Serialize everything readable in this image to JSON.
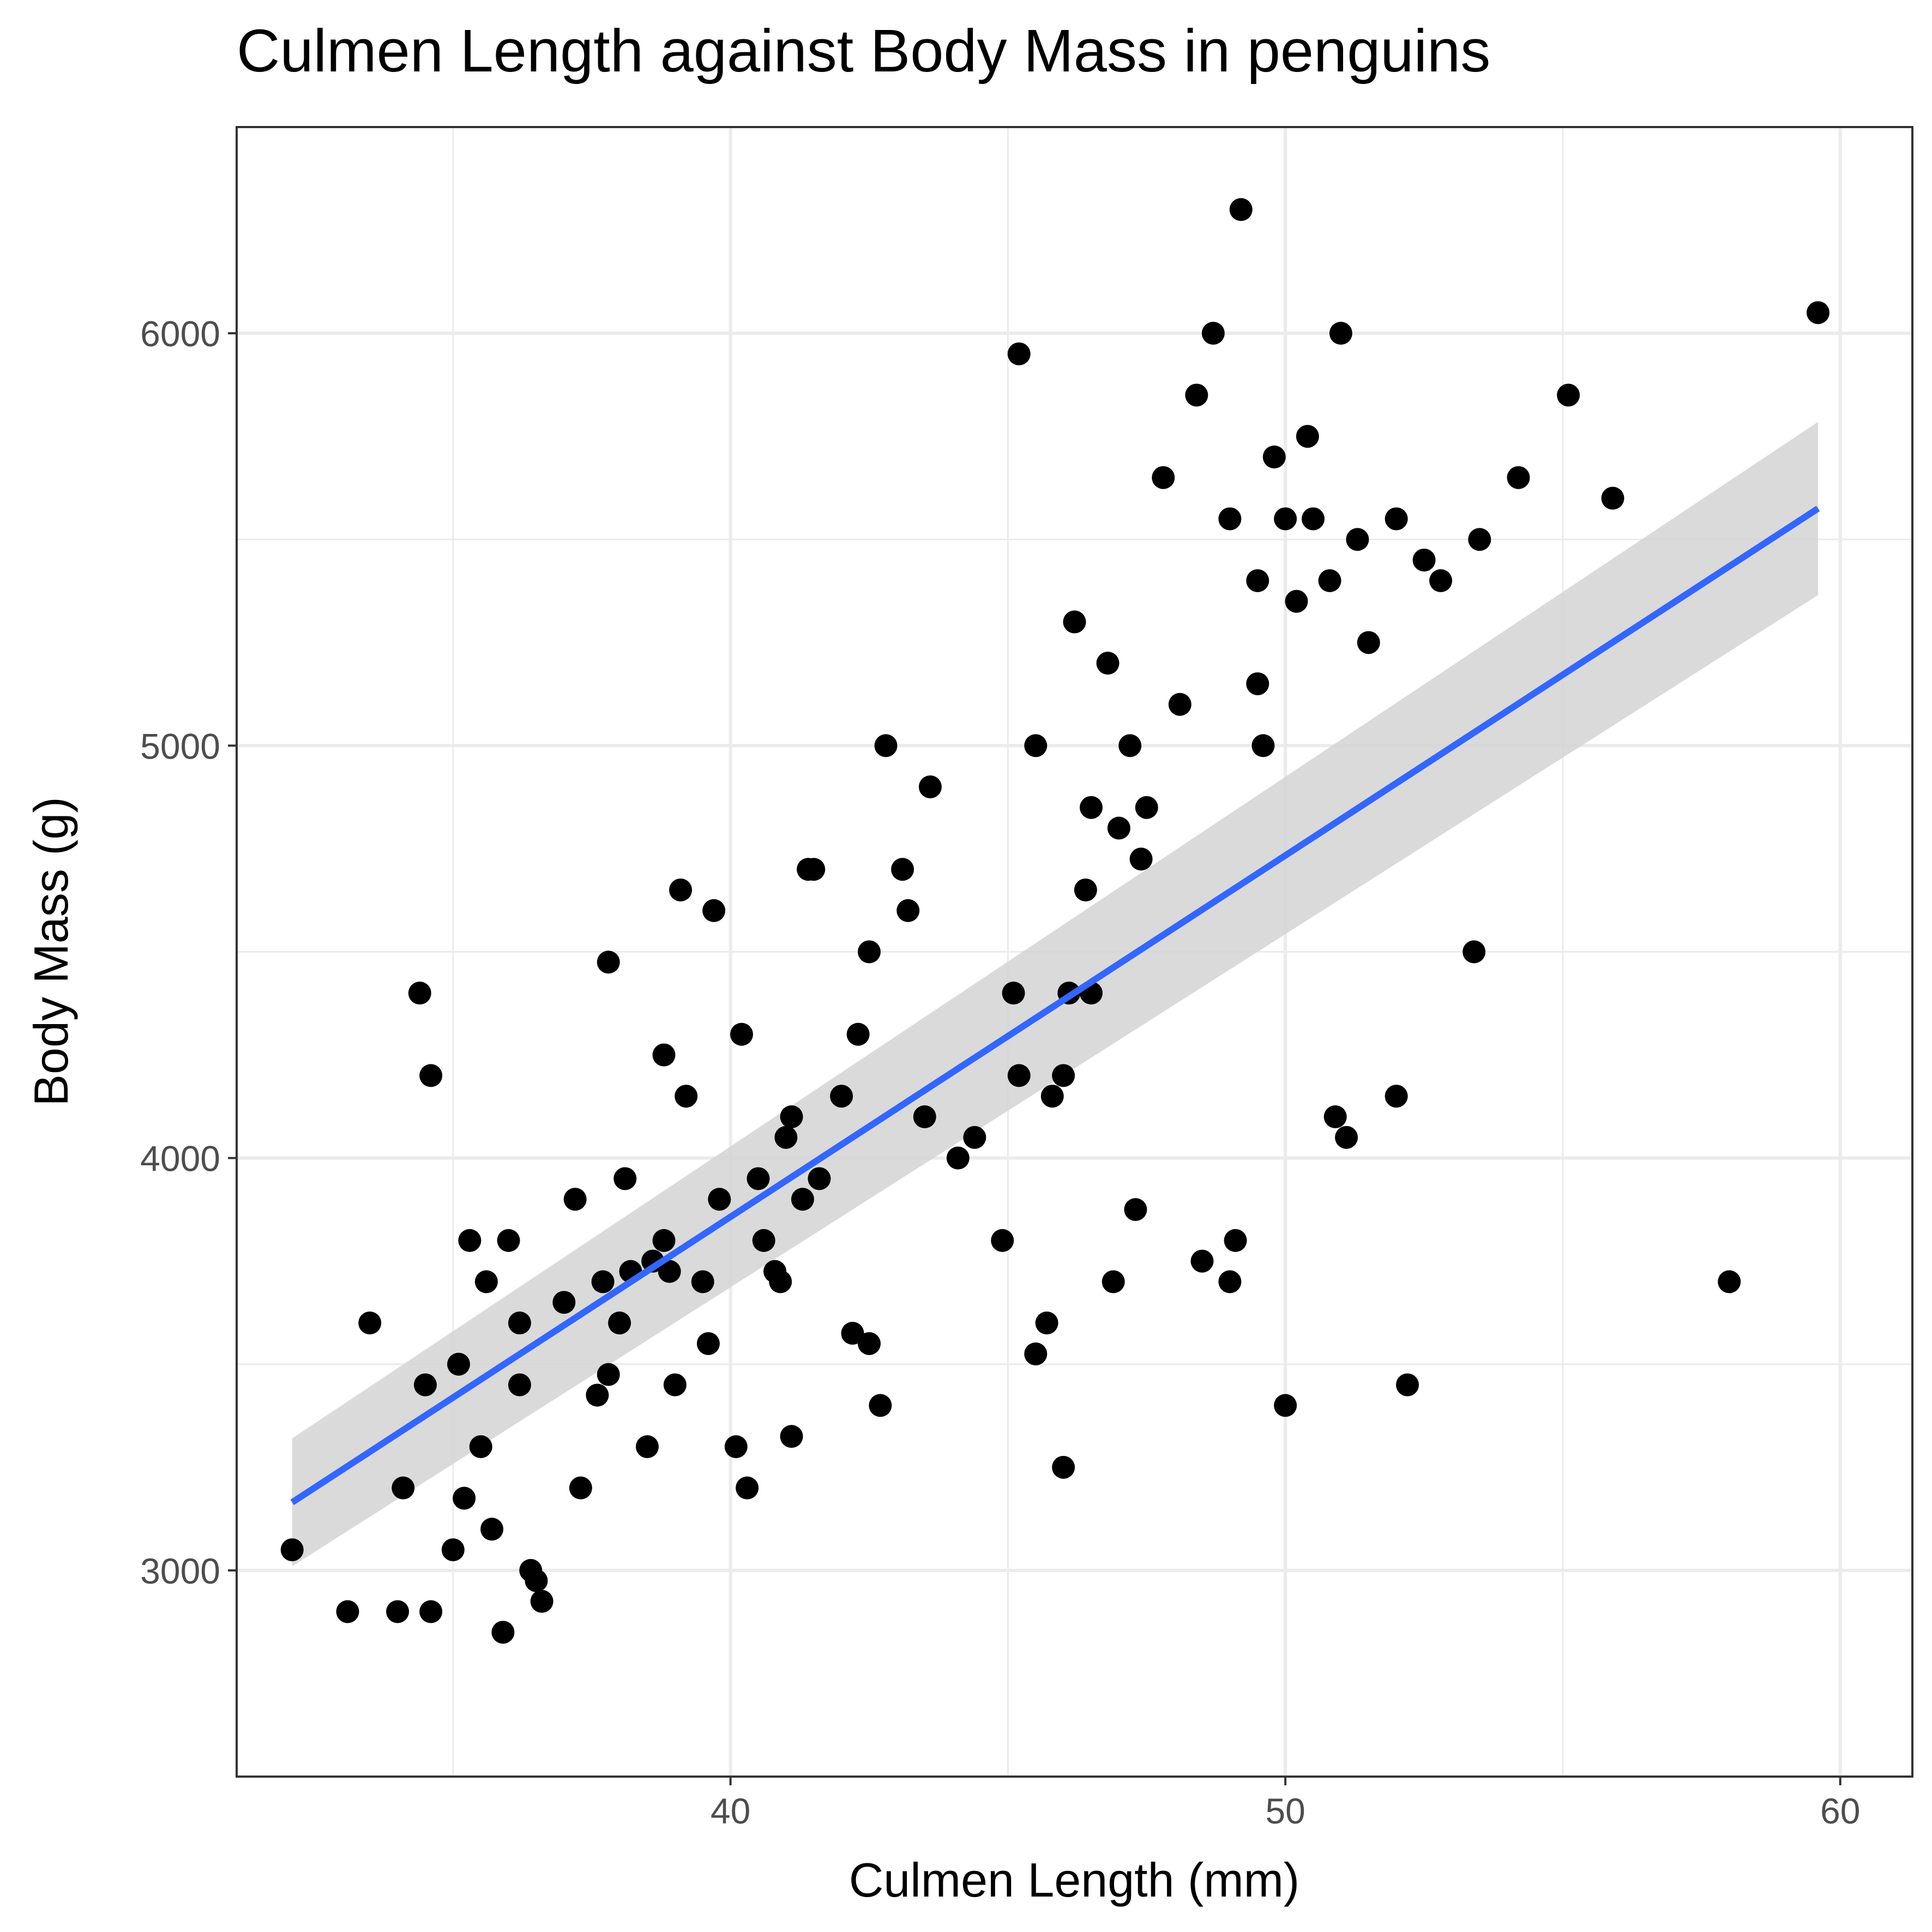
{
  "chart_data": {
    "type": "scatter",
    "title": "Culmen Length against Body Mass in penguins",
    "xlabel": "Culmen Length (mm)",
    "ylabel": "Body Mass (g)",
    "xlim": [
      31.1,
      61.3
    ],
    "ylim": [
      2500,
      6500
    ],
    "x_ticks": [
      40,
      50,
      60
    ],
    "x_minor_ticks": [
      35,
      45,
      55
    ],
    "y_ticks": [
      3000,
      4000,
      5000,
      6000
    ],
    "y_minor_ticks": [
      3500,
      4500,
      5500
    ],
    "grid": true,
    "legend": "none",
    "colors": {
      "points": "#000000",
      "fit_line": "#3366ff",
      "confidence_band": "#d3d3d3",
      "grid": "#ebebeb",
      "panel_border": "#333333"
    },
    "series": [
      {
        "type": "scatter",
        "x": [
          32.1,
          33.1,
          33.5,
          34.0,
          34.1,
          34.4,
          34.5,
          34.6,
          34.6,
          35.0,
          35.1,
          35.2,
          35.3,
          35.5,
          35.6,
          35.7,
          35.9,
          36.0,
          36.2,
          36.4,
          36.5,
          36.6,
          37.0,
          37.3,
          37.6,
          37.7,
          37.8,
          38.0,
          38.1,
          38.2,
          38.5,
          38.6,
          38.8,
          39.0,
          39.2,
          39.5,
          39.6,
          39.7,
          39.8,
          40.2,
          40.3,
          40.6,
          40.8,
          40.9,
          41.0,
          41.1,
          41.3,
          41.4,
          41.5,
          41.6,
          42.0,
          42.2,
          42.3,
          42.5,
          42.7,
          42.8,
          43.1,
          43.2,
          43.5,
          43.6,
          44.1,
          44.4,
          45.1,
          45.2,
          45.5,
          45.8,
          46.0,
          46.1,
          46.2,
          46.4,
          46.5,
          46.8,
          47.0,
          47.2,
          47.5,
          47.8,
          48.1,
          48.4,
          48.7,
          49.0,
          49.2,
          49.5,
          49.8,
          50.0,
          50.2,
          50.4,
          50.5,
          50.8,
          51.0,
          51.3,
          51.5,
          52.0,
          52.5,
          52.8,
          53.5,
          54.2,
          55.1,
          55.9,
          58.0,
          59.6,
          36.2,
          38.9,
          40.1,
          39.1,
          37.8,
          37.2,
          38.8,
          41.1,
          40.5,
          42.5,
          46.5,
          45.2,
          47.4,
          49.6,
          50.9,
          49.5,
          46.9,
          48.5,
          51.1,
          52.2,
          50.0,
          45.7,
          47.3,
          44.9,
          49.0,
          53.4,
          52.0,
          46.0,
          45.5,
          49.1
        ],
        "y": [
          3050,
          2900,
          3600,
          2900,
          3200,
          4400,
          3450,
          2900,
          4200,
          3050,
          3500,
          3175,
          3800,
          3300,
          3700,
          3100,
          2850,
          3800,
          3450,
          3000,
          2975,
          2925,
          3650,
          3200,
          3425,
          3700,
          3475,
          3600,
          3950,
          3725,
          3300,
          3750,
          4250,
          3450,
          4150,
          3700,
          3550,
          4600,
          3900,
          4300,
          3200,
          3800,
          3725,
          3700,
          4050,
          4100,
          3900,
          4700,
          4700,
          3950,
          4150,
          3575,
          4300,
          3550,
          3400,
          5000,
          4700,
          4600,
          4100,
          4900,
          4000,
          4050,
          4400,
          4200,
          5000,
          4150,
          4200,
          4400,
          5300,
          4650,
          4850,
          5200,
          4800,
          5000,
          4850,
          5650,
          5100,
          5850,
          6000,
          5550,
          6300,
          5400,
          5700,
          5550,
          5350,
          5750,
          5550,
          5400,
          6000,
          5500,
          5250,
          5550,
          5450,
          5400,
          5500,
          5650,
          5850,
          5600,
          3700,
          6050,
          3600,
          3725,
          3300,
          4650,
          4475,
          3900,
          3800,
          3325,
          3950,
          4500,
          4400,
          5950,
          4725,
          5000,
          4100,
          5150,
          3700,
          3750,
          4050,
          3450,
          3400,
          3600,
          3875,
          3800,
          3700,
          4500,
          4150,
          3250,
          3525,
          3800
        ]
      },
      {
        "type": "line",
        "name": "",
        "x": [
          32.1,
          59.6
        ],
        "y": [
          3165,
          5575
        ],
        "ci_low": [
          3010,
          5365
        ],
        "ci_high": [
          3320,
          5785
        ]
      }
    ]
  }
}
